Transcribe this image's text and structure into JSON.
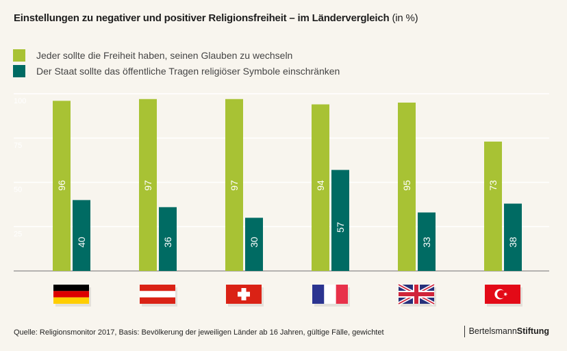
{
  "title": {
    "main": "Einstellungen zu negativer und positiver Religionsfreiheit – im Ländervergleich",
    "unit": "(in %)"
  },
  "colors": {
    "series1": "#a8c234",
    "series2": "#006b63",
    "background": "#f8f5ee",
    "gridline": "#ffffff",
    "baseline": "#8a8a8a"
  },
  "chart_data": {
    "type": "bar",
    "title": "Einstellungen zu negativer und positiver Religionsfreiheit – im Ländervergleich (in %)",
    "xlabel": "",
    "ylabel": "",
    "ylim": [
      0,
      100
    ],
    "yticks": [
      25,
      50,
      75,
      100
    ],
    "grid": true,
    "legend_position": "top-left",
    "categories": [
      "Deutschland",
      "Österreich",
      "Schweiz",
      "Frankreich",
      "Großbritannien",
      "Türkei"
    ],
    "category_icons": [
      "flag-germany",
      "flag-austria",
      "flag-switzerland",
      "flag-france",
      "flag-uk",
      "flag-turkey"
    ],
    "series": [
      {
        "name": "Jeder sollte die Freiheit haben, seinen Glauben zu wechseln",
        "color": "#a8c234",
        "values": [
          96,
          97,
          97,
          94,
          95,
          73
        ]
      },
      {
        "name": "Der Staat sollte das öffentliche Tragen religiöser Symbole einschränken",
        "color": "#006b63",
        "values": [
          40,
          36,
          30,
          57,
          33,
          38
        ]
      }
    ]
  },
  "footer": {
    "source": "Quelle: Religionsmonitor 2017, Basis: Bevölkerung der jeweiligen Länder ab 16 Jahren, gültige Fälle, gewichtet",
    "brand_regular": "Bertelsmann",
    "brand_bold": "Stiftung"
  }
}
